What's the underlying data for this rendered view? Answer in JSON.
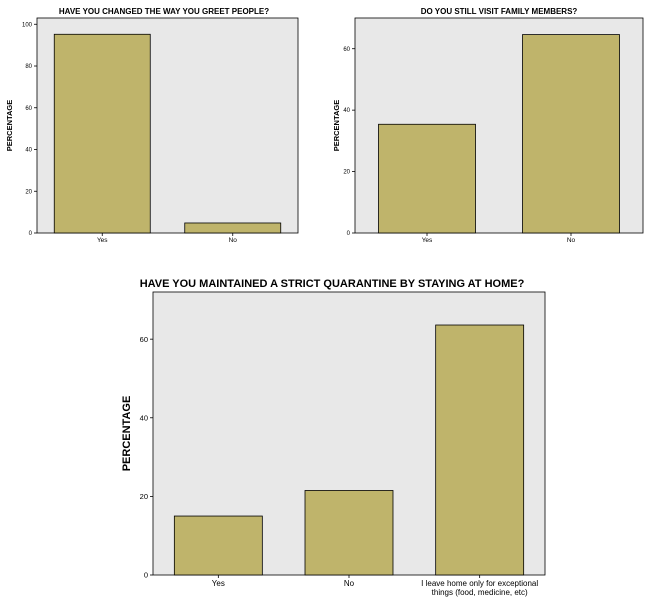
{
  "chart_data": [
    {
      "type": "bar",
      "title": "HAVE YOU CHANGED THE WAY YOU GREET PEOPLE?",
      "ylabel": "PERCENTAGE",
      "xlabel": "",
      "categories": [
        "Yes",
        "No"
      ],
      "values": [
        95.2,
        4.8
      ],
      "yticks": [
        0,
        20,
        40,
        60,
        80,
        100
      ],
      "ylim": [
        0,
        103
      ],
      "grid": false,
      "bar_color": "#bfb46b",
      "plot_bg": "#e8e8e8"
    },
    {
      "type": "bar",
      "title": "DO YOU STILL VISIT FAMILY MEMBERS?",
      "ylabel": "PERCENTAGE",
      "xlabel": "",
      "categories": [
        "Yes",
        "No"
      ],
      "values": [
        35.4,
        64.6
      ],
      "yticks": [
        0,
        20,
        40,
        60
      ],
      "ylim": [
        0,
        70
      ],
      "grid": false,
      "bar_color": "#bfb46b",
      "plot_bg": "#e8e8e8"
    },
    {
      "type": "bar",
      "title": "HAVE YOU MAINTAINED A STRICT QUARANTINE BY STAYING AT HOME?",
      "ylabel": "PERCENTAGE",
      "xlabel": "",
      "categories": [
        "Yes",
        "No",
        "I leave home only for exceptional things (food, medicine, etc)"
      ],
      "category_lines": [
        [
          "Yes"
        ],
        [
          "No"
        ],
        [
          "I leave home only for exceptional",
          "things (food, medicine, etc)"
        ]
      ],
      "values": [
        15.0,
        21.5,
        63.6
      ],
      "yticks": [
        0,
        20,
        40,
        60
      ],
      "ylim": [
        0,
        72
      ],
      "grid": false,
      "bar_color": "#bfb46b",
      "plot_bg": "#e8e8e8"
    }
  ]
}
